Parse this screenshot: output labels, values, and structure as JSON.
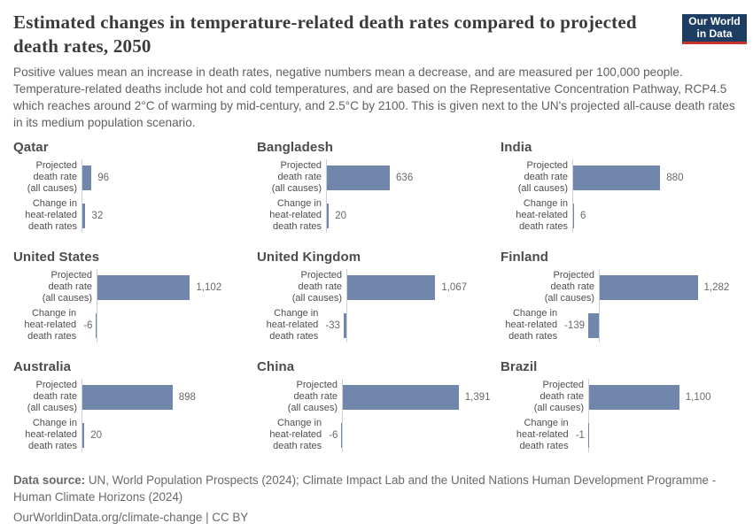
{
  "header": {
    "title": "Estimated changes in temperature-related death rates compared to projected death rates, 2050",
    "subtitle": "Positive values mean an increase in death rates, negative numbers mean a decrease, and are measured per 100,000 people. Temperature-related deaths include hot and cold temperatures, and are based on the Representative Concentration Pathway, RCP4.5 which reaches around 2°C of warming by mid-century, and 2.5°C by 2100. This is given next to the UN's projected all-cause death rates in its medium population scenario.",
    "logo": {
      "line1": "Our World",
      "line2": "in Data",
      "bg_color": "#1d3d63",
      "accent_color": "#c5332b"
    }
  },
  "chart_data": {
    "type": "bar",
    "orientation": "horizontal",
    "bar_color": "#7086aa",
    "axis_color": "#ccd1d8",
    "categories": [
      "Projected death rate (all causes)",
      "Change in heat-related death rates"
    ],
    "category_label_lines": [
      [
        "Projected",
        "death rate",
        "(all causes)"
      ],
      [
        "Change in",
        "heat-related",
        "death rates"
      ]
    ],
    "value_format": "en-US thousands separator",
    "facets": [
      {
        "country": "Qatar",
        "values": [
          96,
          32
        ]
      },
      {
        "country": "Bangladesh",
        "values": [
          636,
          20
        ]
      },
      {
        "country": "India",
        "values": [
          880,
          6
        ]
      },
      {
        "country": "United States",
        "values": [
          1102,
          -6
        ]
      },
      {
        "country": "United Kingdom",
        "values": [
          1067,
          -33
        ]
      },
      {
        "country": "Finland",
        "values": [
          1282,
          -139
        ]
      },
      {
        "country": "Australia",
        "values": [
          898,
          20
        ]
      },
      {
        "country": "China",
        "values": [
          1391,
          -6
        ]
      },
      {
        "country": "Brazil",
        "values": [
          1100,
          -1
        ]
      }
    ]
  },
  "footer": {
    "source_label": "Data source:",
    "source_text": "UN, World Population Prospects (2024); Climate Impact Lab and the United Nations Human Development Programme - Human Climate Horizons (2024)",
    "citation": "OurWorldinData.org/climate-change | CC BY"
  }
}
